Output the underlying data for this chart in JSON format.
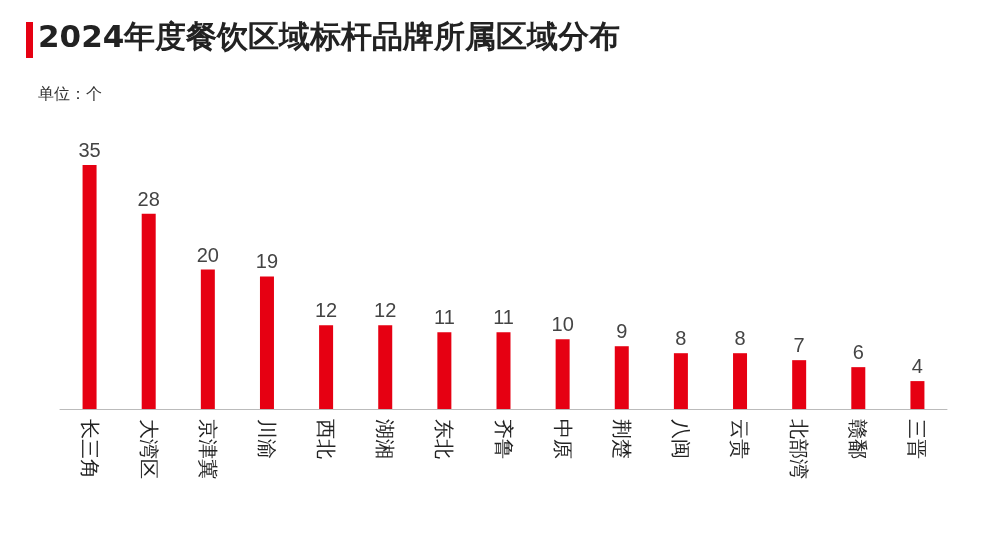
{
  "chart_data": {
    "type": "bar",
    "title": "2024年度餐饮区域标杆品牌所属区域分布",
    "categories": [
      "长三角",
      "大湾区",
      "京津冀",
      "川渝",
      "西北",
      "湖湘",
      "东北",
      "齐鲁",
      "中原",
      "荆楚",
      "八闽",
      "云贵",
      "北部湾",
      "赣鄱",
      "三晋"
    ],
    "values": [
      35,
      28,
      20,
      19,
      12,
      12,
      11,
      11,
      10,
      9,
      8,
      8,
      7,
      6,
      4
    ],
    "color": "#e60012",
    "data_labels": true,
    "annotations": [
      "单位：个"
    ]
  }
}
